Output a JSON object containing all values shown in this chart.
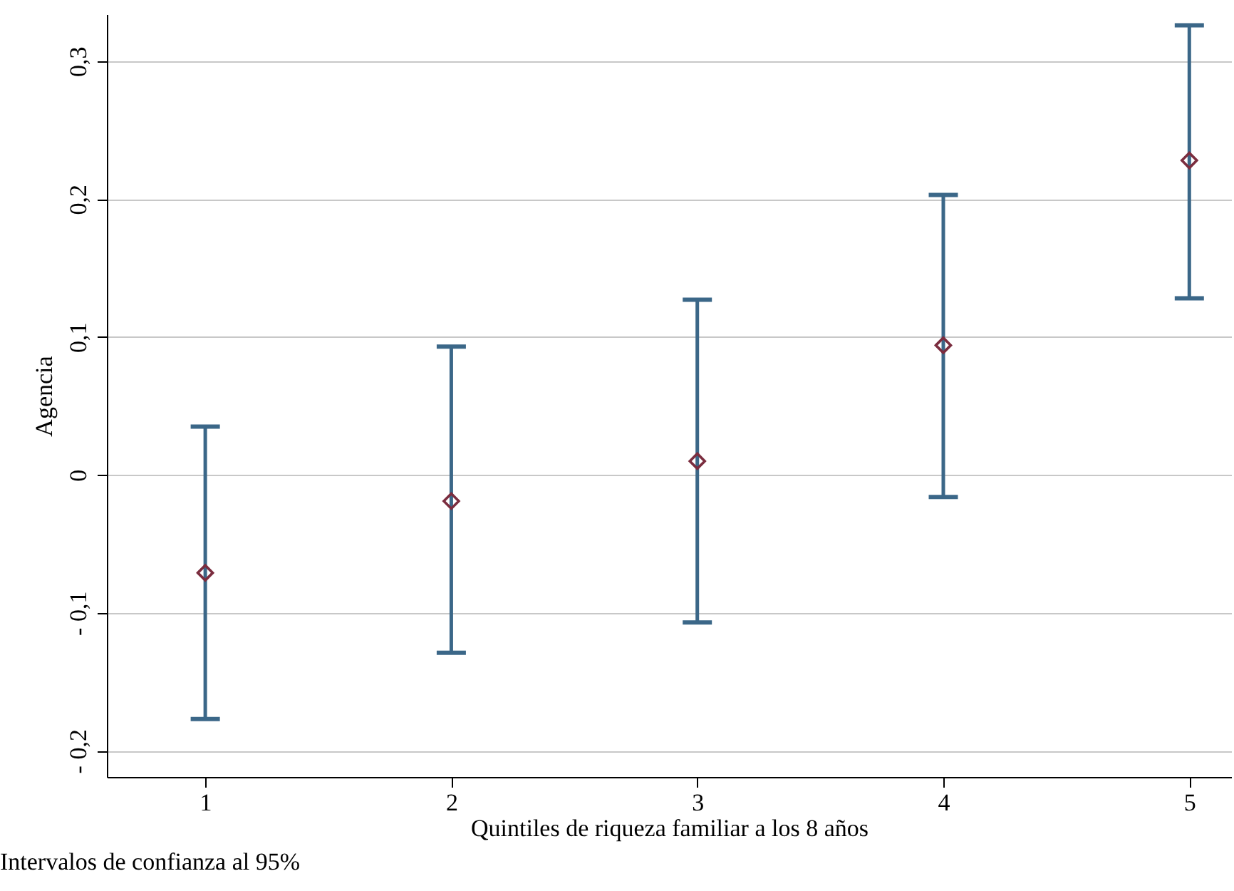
{
  "chart_data": {
    "type": "scatter",
    "xlabel": "Quintiles de riqueza familiar a los 8 años",
    "ylabel": "Agencia",
    "annotations": [
      "Intervalos de confianza al 95%"
    ],
    "x": [
      1,
      2,
      3,
      4,
      5
    ],
    "series": [
      {
        "color": "#7b2d3f",
        "values": [
          -0.071,
          -0.019,
          0.01,
          0.094,
          0.228
        ],
        "errors": [
          [
            -0.177,
            0.035
          ],
          [
            -0.129,
            0.093
          ],
          [
            -0.107,
            0.127
          ],
          [
            -0.016,
            0.203
          ],
          [
            0.128,
            0.326
          ]
        ]
      }
    ],
    "xlim": [
      0.6,
      5.17
    ],
    "xticks": [
      1,
      2,
      3,
      4,
      5
    ],
    "ylim": [
      -0.219,
      0.334
    ],
    "yticks": [
      {
        "value": -0.2,
        "label": "- 0,2"
      },
      {
        "value": -0.1,
        "label": "- 0,1"
      },
      {
        "value": 0,
        "label": "0"
      },
      {
        "value": 0.1,
        "label": "0,1"
      },
      {
        "value": 0.2,
        "label": "0,2"
      },
      {
        "value": 0.3,
        "label": "0,3"
      }
    ],
    "grid": "y",
    "marker": "diamond"
  }
}
